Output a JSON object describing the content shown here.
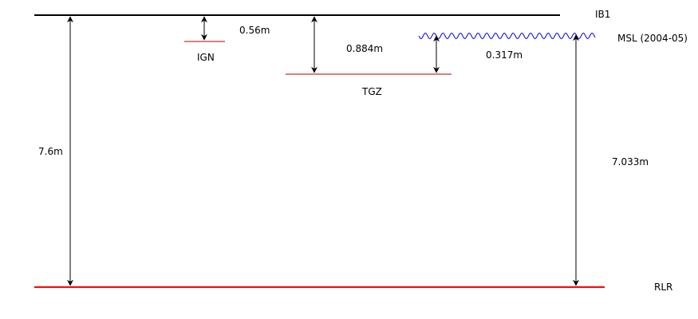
{
  "levels": {
    "ib1": "IB1",
    "ign": "IGN",
    "tgz": "TGZ",
    "msl": "MSL (2004-05)",
    "rlr": "RLR"
  },
  "measurements": {
    "ib1_to_ign": "0.56m",
    "ib1_to_tgz": "0.884m",
    "msl_to_tgz": "0.317m",
    "ib1_to_rlr": "7.6m",
    "msl_to_rlr": "7.033m"
  },
  "colors": {
    "ib1_line": "#000000",
    "ign_line": "#b00000",
    "tgz_line": "#b00000",
    "msl_wave": "#0000dd",
    "rlr_line": "#ff0000",
    "arrows": "#000000"
  }
}
